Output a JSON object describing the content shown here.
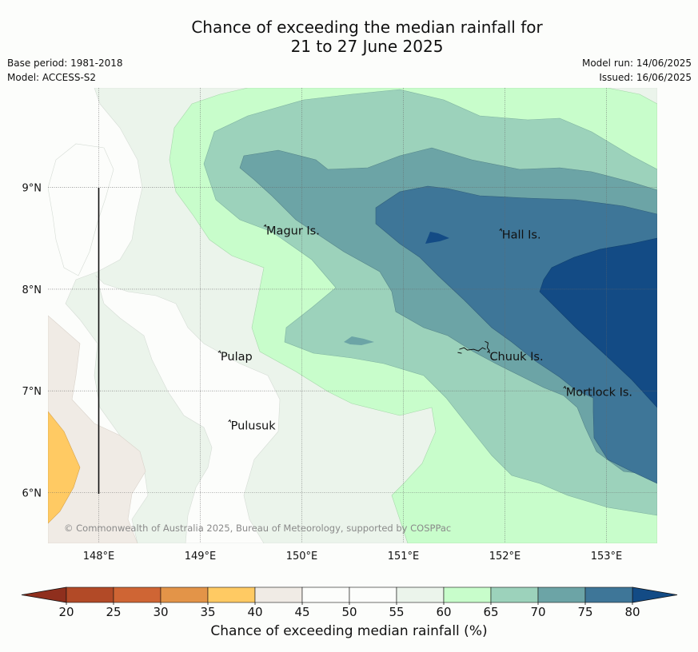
{
  "title": {
    "line1": "Chance of exceeding the median rainfall for",
    "line2": "21 to 27 June 2025"
  },
  "meta": {
    "base_period": "Base period: 1981-2018",
    "model": "Model: ACCESS-S2",
    "model_run": "Model run: 14/06/2025",
    "issued": "Issued: 16/06/2025"
  },
  "map": {
    "extent": {
      "lon": [
        147.5,
        153.5
      ],
      "lat": [
        5.5,
        9.98
      ]
    },
    "lon_ticks": [
      {
        "value": 148,
        "label": "148°E"
      },
      {
        "value": 149,
        "label": "149°E"
      },
      {
        "value": 150,
        "label": "150°E"
      },
      {
        "value": 151,
        "label": "151°E"
      },
      {
        "value": 152,
        "label": "152°E"
      },
      {
        "value": 153,
        "label": "153°E"
      }
    ],
    "lat_ticks": [
      {
        "value": 9,
        "label": "9°N"
      },
      {
        "value": 8,
        "label": "8°N"
      },
      {
        "value": 7,
        "label": "7°N"
      },
      {
        "value": 6,
        "label": "6°N"
      }
    ],
    "places": [
      {
        "name": "Magur Is.",
        "lon": 149.65,
        "lat": 8.57
      },
      {
        "name": "Hall Is.",
        "lon": 151.97,
        "lat": 8.53
      },
      {
        "name": "Pulap",
        "lon": 149.2,
        "lat": 7.33
      },
      {
        "name": "Chuuk Is.",
        "lon": 151.85,
        "lat": 7.33
      },
      {
        "name": "Mortlock Is.",
        "lon": 152.6,
        "lat": 6.98
      },
      {
        "name": "Pulusuk",
        "lon": 149.3,
        "lat": 6.65
      }
    ],
    "attribution": "© Commonwealth of Australia 2025, Bureau of Meteorology, supported by COSPPac"
  },
  "colorbar": {
    "title": "Chance of exceeding median rainfall (%)",
    "ticks": [
      "20",
      "25",
      "30",
      "35",
      "40",
      "45",
      "50",
      "55",
      "60",
      "65",
      "70",
      "75",
      "80"
    ],
    "colors": [
      "#b24a27",
      "#cf6534",
      "#e39448",
      "#ffca63",
      "#f0ebe5",
      "#fcfdfb",
      "#fcfdfb",
      "#ebf4eb",
      "#c8fdcb",
      "#9cd2bb",
      "#6ca4a6",
      "#3e7698"
    ],
    "under_color": "#8f2f1d",
    "over_color": "#134b85"
  }
}
